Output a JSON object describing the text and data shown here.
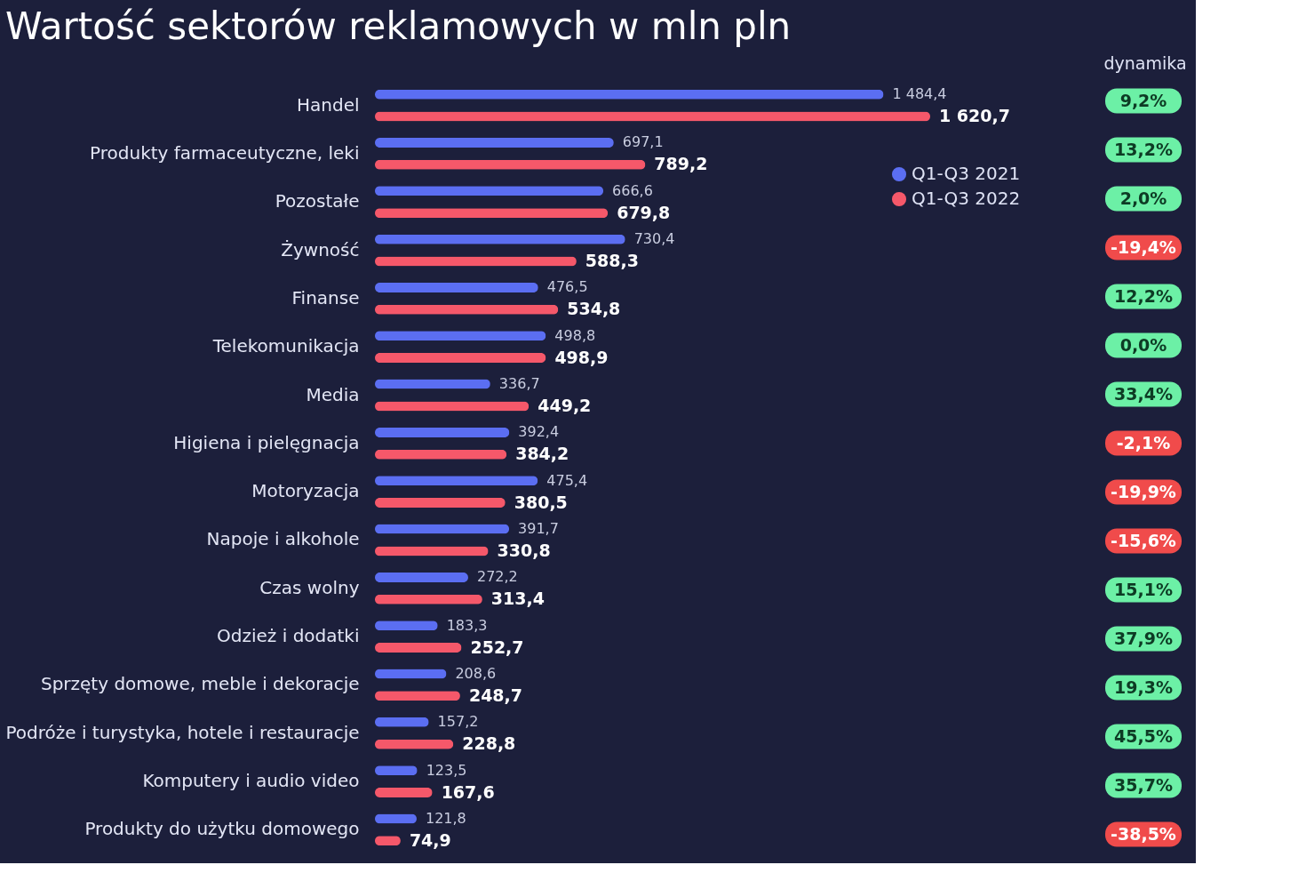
{
  "chart_data": {
    "type": "bar",
    "orientation": "horizontal",
    "title": "Wartość sektorów reklamowych w mln pln",
    "categories": [
      "Handel",
      "Produkty farmaceutyczne, leki",
      "Pozostałe",
      "Żywność",
      "Finanse",
      "Telekomunikacja",
      "Media",
      "Higiena i pielęgnacja",
      "Motoryzacja",
      "Napoje i alkohole",
      "Czas wolny",
      "Odzież i dodatki",
      "Sprzęty domowe, meble i dekoracje",
      "Podróże i turystyka, hotele i restauracje",
      "Komputery i audio video",
      "Produkty do użytku domowego"
    ],
    "series": [
      {
        "name": "Q1-Q3 2021",
        "color": "#5b6ef2",
        "values": [
          1484.4,
          697.1,
          666.6,
          730.4,
          476.5,
          498.8,
          336.7,
          392.4,
          475.4,
          391.7,
          272.2,
          183.3,
          208.6,
          157.2,
          123.5,
          121.8
        ],
        "value_labels": [
          "1 484,4",
          "697,1",
          "666,6",
          "730,4",
          "476,5",
          "498,8",
          "336,7",
          "392,4",
          "475,4",
          "391,7",
          "272,2",
          "183,3",
          "208,6",
          "157,2",
          "123,5",
          "121,8"
        ]
      },
      {
        "name": "Q1-Q3 2022",
        "color": "#f5586a",
        "values": [
          1620.7,
          789.2,
          679.8,
          588.3,
          534.8,
          498.9,
          449.2,
          384.2,
          380.5,
          330.8,
          313.4,
          252.7,
          248.7,
          228.8,
          167.6,
          74.9
        ],
        "value_labels": [
          "1 620,7",
          "789,2",
          "679,8",
          "588,3",
          "534,8",
          "498,9",
          "449,2",
          "384,2",
          "380,5",
          "330,8",
          "313,4",
          "252,7",
          "248,7",
          "228,8",
          "167,6",
          "74,9"
        ]
      }
    ],
    "legend": "top right",
    "annotations": [
      "dynamika",
      "9,2%",
      "13,2%",
      "2,0%",
      "-19,4%",
      "12,2%",
      "0,0%",
      "33,4%",
      "-2,1%",
      "-19,9%",
      "-15,6%",
      "15,1%",
      "37,9%",
      "19,3%",
      "45,5%",
      "35,7%",
      "-38,5%"
    ]
  }
}
